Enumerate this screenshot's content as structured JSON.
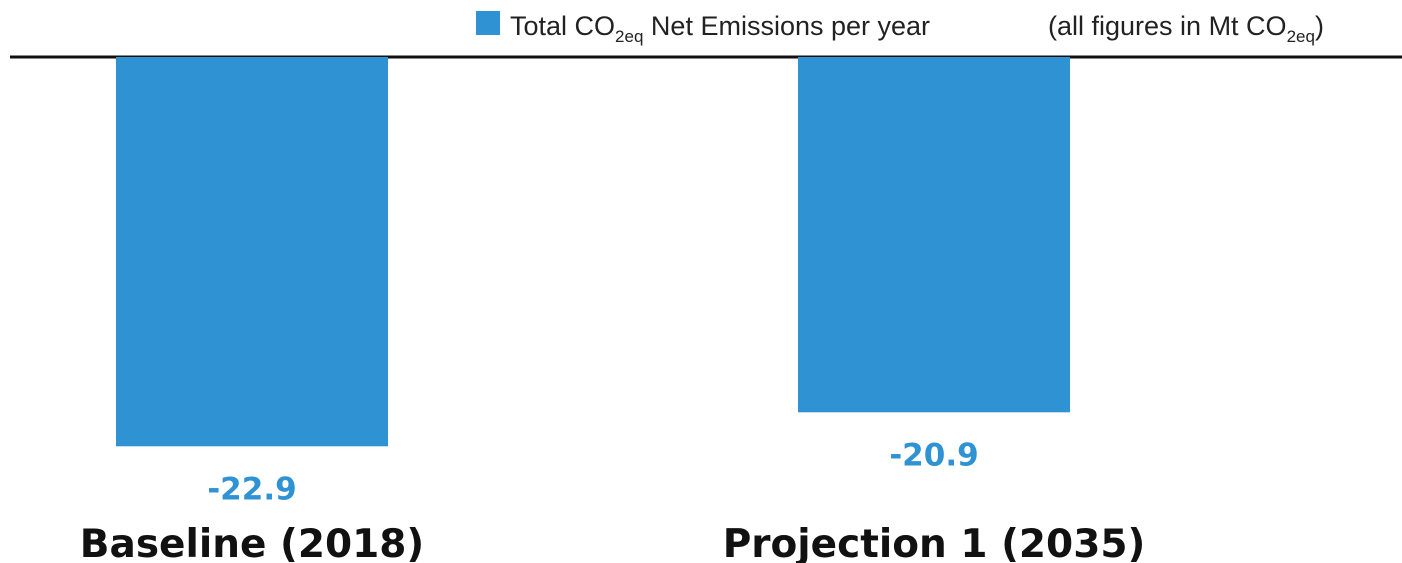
{
  "chart_data": {
    "type": "bar",
    "categories": [
      "Baseline (2018)",
      "Projection 1 (2035)"
    ],
    "series": [
      {
        "name": "Total CO2eq Net Emissions per year",
        "values": [
          -22.9,
          -20.9
        ]
      }
    ],
    "value_labels": [
      "-22.9",
      "-20.9"
    ],
    "ylim": [
      -25,
      0
    ],
    "legend": {
      "position": "top-right",
      "series_label_parts": [
        "Total CO",
        "2eq",
        " Net Emissions per year"
      ],
      "units_note_parts": [
        "(all figures in Mt CO",
        "2eq",
        ")"
      ]
    },
    "grid": false
  },
  "colors": {
    "bar": "#2f93d3",
    "value_label": "#2f93d3",
    "axis": "#111111"
  }
}
